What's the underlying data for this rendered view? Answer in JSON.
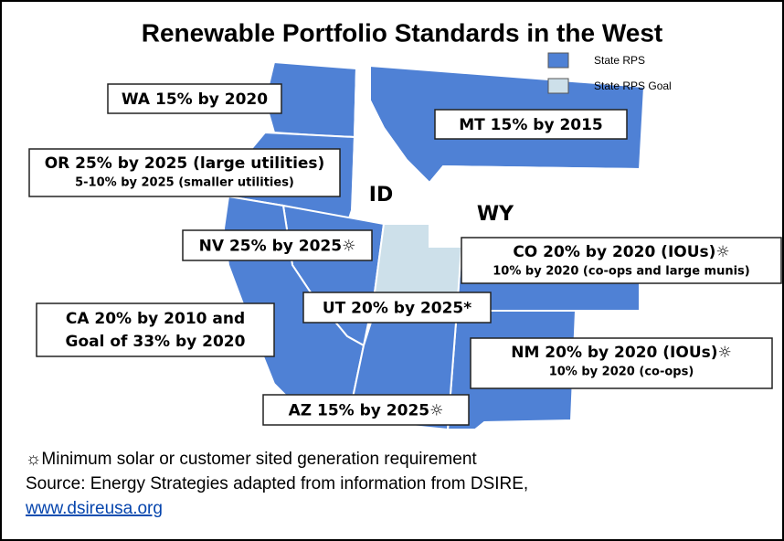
{
  "title": "Renewable Portfolio Standards in the West",
  "legend": [
    {
      "label": "State RPS",
      "color": "#4f81d5"
    },
    {
      "label": "State RPS Goal",
      "color": "#cde0ea"
    }
  ],
  "states": [
    {
      "name": "WA",
      "color": "#4f81d5",
      "label": [
        "WA 15% by 2020"
      ]
    },
    {
      "name": "MT",
      "color": "#4f81d5",
      "label": [
        "MT 15% by 2015"
      ]
    },
    {
      "name": "OR",
      "color": "#4f81d5",
      "label": [
        "OR 25% by 2025 (large utilities)",
        "5-10% by 2025 (smaller utilities)"
      ]
    },
    {
      "name": "ID",
      "color": "#ffffff",
      "label": [
        "ID"
      ]
    },
    {
      "name": "WY",
      "color": "#ffffff",
      "label": [
        "WY"
      ]
    },
    {
      "name": "NV",
      "color": "#4f81d5",
      "label": [
        "NV 25% by 2025☼"
      ]
    },
    {
      "name": "CO",
      "color": "#4f81d5",
      "label": [
        "CO 20% by 2020 (IOUs)☼",
        "10% by 2020 (co-ops and large munis)"
      ]
    },
    {
      "name": "UT",
      "color": "#cde0ea",
      "label": [
        "UT 20% by 2025*"
      ]
    },
    {
      "name": "CA",
      "color": "#4f81d5",
      "label": [
        "CA 20% by 2010 and",
        "Goal of 33% by 2020"
      ]
    },
    {
      "name": "NM",
      "color": "#4f81d5",
      "label": [
        "NM 20% by 2020 (IOUs)☼",
        "10% by 2020 (co-ops)"
      ]
    },
    {
      "name": "AZ",
      "color": "#4f81d5",
      "label": [
        "AZ 15% by 2025☼"
      ]
    }
  ],
  "footnotes": [
    "☼Minimum solar or customer sited generation requirement",
    "Source: Energy Strategies adapted from information from DSIRE,"
  ],
  "link": "www.dsireusa.org"
}
